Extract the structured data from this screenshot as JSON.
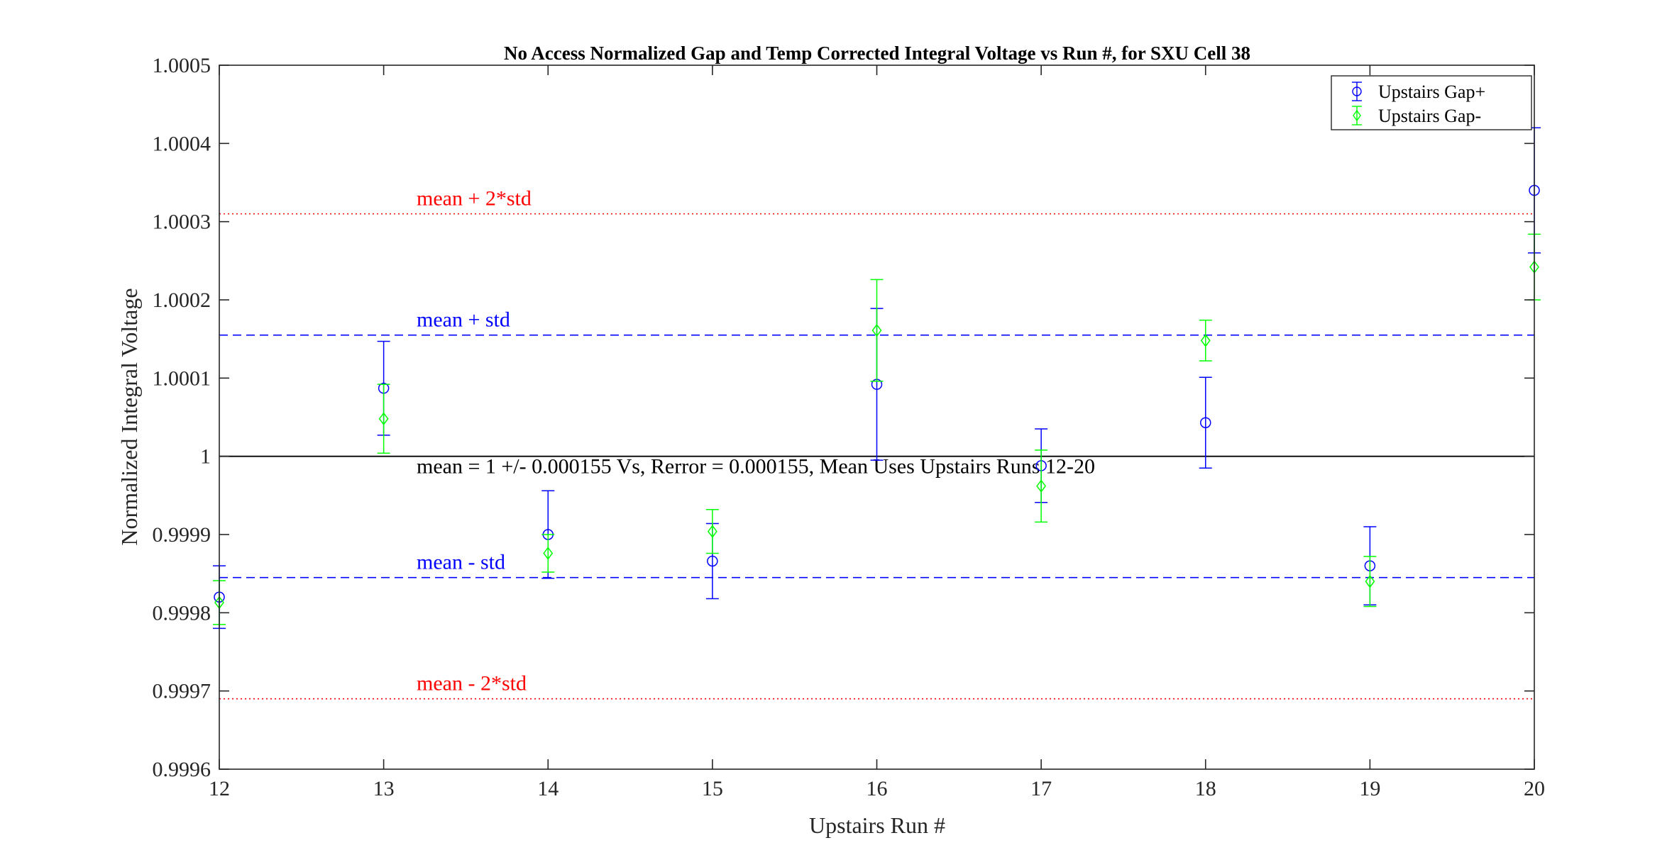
{
  "chart_data": {
    "type": "scatter",
    "title": "No Access Normalized Gap and Temp Corrected Integral Voltage vs Run #, for SXU Cell 38",
    "xlabel": "Upstairs Run #",
    "ylabel": "Normalized Integral Voltage",
    "xlim": [
      12,
      20
    ],
    "ylim": [
      0.9996,
      1.0005
    ],
    "x_ticks": [
      12,
      13,
      14,
      15,
      16,
      17,
      18,
      19,
      20
    ],
    "x_tick_labels": [
      "12",
      "13",
      "14",
      "15",
      "16",
      "17",
      "18",
      "19",
      "20"
    ],
    "y_ticks": [
      0.9996,
      0.9997,
      0.9998,
      0.9999,
      1.0,
      1.0001,
      1.0002,
      1.0003,
      1.0004,
      1.0005
    ],
    "y_tick_labels": [
      "0.9996",
      "0.9997",
      "0.9998",
      "0.9999",
      "1",
      "1.0001",
      "1.0002",
      "1.0003",
      "1.0004",
      "1.0005"
    ],
    "grid": false,
    "legend_position": "top-right",
    "series": [
      {
        "name": "Upstairs Gap+",
        "color": "#0000ff",
        "marker": "circle",
        "x": [
          12,
          13,
          14,
          15,
          16,
          17,
          18,
          19,
          20
        ],
        "y": [
          0.99982,
          1.000087,
          0.9999,
          0.999866,
          1.000092,
          0.999988,
          1.000043,
          0.99986,
          1.00034
        ],
        "err": [
          4e-05,
          6e-05,
          5.6e-05,
          4.8e-05,
          9.7e-05,
          4.7e-05,
          5.8e-05,
          5e-05,
          8e-05
        ]
      },
      {
        "name": "Upstairs Gap-",
        "color": "#00ff00",
        "marker": "diamond",
        "x": [
          12,
          13,
          14,
          15,
          16,
          17,
          18,
          19,
          20
        ],
        "y": [
          0.999813,
          1.000048,
          0.999876,
          0.999904,
          1.000161,
          0.999962,
          1.000148,
          0.99984,
          1.000242
        ],
        "err": [
          2.8e-05,
          4.4e-05,
          2.4e-05,
          2.8e-05,
          6.5e-05,
          4.6e-05,
          2.6e-05,
          3.2e-05,
          4.2e-05
        ]
      }
    ],
    "reference_lines": [
      {
        "value": 1.0,
        "style": "solid",
        "color": "#000000",
        "label": "mean = 1 +/- 0.000155 Vs, Rerror = 0.000155, Mean Uses Upstairs Runs 12-20"
      },
      {
        "value": 1.000155,
        "style": "dashed",
        "color": "#0000ff",
        "label": "mean + std"
      },
      {
        "value": 0.999845,
        "style": "dashed",
        "color": "#0000ff",
        "label": "mean - std"
      },
      {
        "value": 1.00031,
        "style": "dotted",
        "color": "#ff0000",
        "label": "mean + 2*std"
      },
      {
        "value": 0.99969,
        "style": "dotted",
        "color": "#ff0000",
        "label": "mean - 2*std"
      }
    ]
  }
}
